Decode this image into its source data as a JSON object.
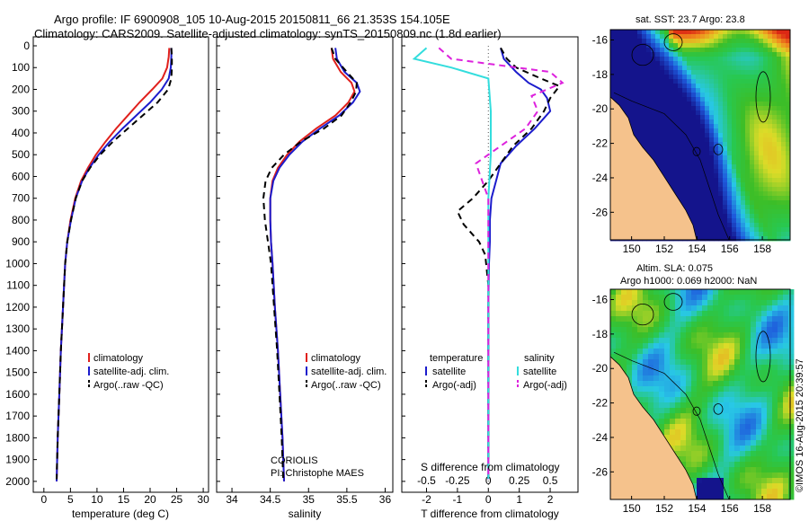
{
  "header": {
    "line1": "Argo profile: IF 6900908_105 10-Aug-2015 20150811_66 21.353S 154.105E",
    "line2": "Climatology: CARS2009. Satellite-adjusted climatology: synTS_20150809.nc (1.8d earlier)"
  },
  "colors": {
    "climatology": "#e0201c",
    "satellite": "#1c1ccc",
    "argo": "#000000",
    "satellite_s": "#33dddd",
    "argo_s": "#dd22dd",
    "land": "#f5c28c"
  },
  "chart_data": [
    {
      "type": "line",
      "panel": "temperature",
      "xlabel": "temperature (deg C)",
      "xlim": [
        -2,
        31
      ],
      "xticks": [
        0,
        5,
        10,
        15,
        20,
        25,
        30
      ],
      "ylim": [
        0,
        2050
      ],
      "yticks": [
        0,
        100,
        200,
        300,
        400,
        500,
        600,
        700,
        800,
        900,
        1000,
        1100,
        1200,
        1300,
        1400,
        1500,
        1600,
        1700,
        1800,
        1900,
        2000
      ],
      "legend": [
        "climatology",
        "satellite-adj. clim.",
        "Argo(..raw -QC)"
      ],
      "series": [
        {
          "name": "climatology",
          "style": "solid",
          "color": "#e0201c",
          "points": [
            [
              23.6,
              10
            ],
            [
              23.5,
              50
            ],
            [
              23.2,
              100
            ],
            [
              22.3,
              150
            ],
            [
              20.4,
              200
            ],
            [
              18.0,
              260
            ],
            [
              15.8,
              320
            ],
            [
              13.6,
              380
            ],
            [
              11.6,
              440
            ],
            [
              9.8,
              500
            ],
            [
              8.3,
              560
            ],
            [
              7.0,
              620
            ],
            [
              5.9,
              700
            ],
            [
              5.0,
              800
            ],
            [
              4.4,
              900
            ],
            [
              4.0,
              1000
            ],
            [
              3.6,
              1200
            ],
            [
              3.2,
              1400
            ],
            [
              2.9,
              1600
            ],
            [
              2.6,
              1800
            ],
            [
              2.4,
              2000
            ]
          ]
        },
        {
          "name": "satellite-adj. clim.",
          "style": "solid",
          "color": "#1c1ccc",
          "points": [
            [
              24.0,
              10
            ],
            [
              24.0,
              50
            ],
            [
              23.9,
              100
            ],
            [
              23.5,
              150
            ],
            [
              22.2,
              200
            ],
            [
              20.0,
              260
            ],
            [
              17.4,
              320
            ],
            [
              14.8,
              380
            ],
            [
              12.4,
              440
            ],
            [
              10.3,
              500
            ],
            [
              8.6,
              560
            ],
            [
              7.2,
              620
            ],
            [
              6.0,
              700
            ],
            [
              5.1,
              800
            ],
            [
              4.4,
              900
            ],
            [
              4.0,
              1000
            ],
            [
              3.6,
              1200
            ],
            [
              3.2,
              1400
            ],
            [
              2.9,
              1600
            ],
            [
              2.6,
              1800
            ],
            [
              2.4,
              2000
            ]
          ]
        },
        {
          "name": "Argo(..raw -QC)",
          "style": "dashed",
          "color": "#000000",
          "points": [
            [
              24.0,
              10
            ],
            [
              24.1,
              50
            ],
            [
              24.1,
              100
            ],
            [
              24.0,
              150
            ],
            [
              23.4,
              200
            ],
            [
              21.4,
              260
            ],
            [
              18.6,
              320
            ],
            [
              15.8,
              380
            ],
            [
              13.0,
              440
            ],
            [
              10.6,
              500
            ],
            [
              8.7,
              560
            ],
            [
              7.2,
              620
            ],
            [
              6.0,
              700
            ],
            [
              5.1,
              800
            ],
            [
              4.4,
              900
            ],
            [
              4.0,
              1000
            ],
            [
              3.6,
              1200
            ],
            [
              3.2,
              1400
            ],
            [
              2.9,
              1600
            ],
            [
              2.6,
              1800
            ],
            [
              2.4,
              1990
            ]
          ]
        }
      ]
    },
    {
      "type": "line",
      "panel": "salinity",
      "xlabel": "salinity",
      "xlim": [
        33.8,
        36.1
      ],
      "xticks": [
        34,
        34.5,
        35,
        35.5,
        36
      ],
      "ylim": [
        0,
        2050
      ],
      "legend": [
        "climatology",
        "satellite-adj. clim.",
        "Argo(..raw -QC)"
      ],
      "annotation": [
        "CORIOLIS",
        "PI: Christophe MAES"
      ],
      "series": [
        {
          "name": "climatology",
          "style": "solid",
          "color": "#e0201c",
          "points": [
            [
              35.3,
              10
            ],
            [
              35.32,
              60
            ],
            [
              35.42,
              120
            ],
            [
              35.56,
              170
            ],
            [
              35.6,
              210
            ],
            [
              35.52,
              260
            ],
            [
              35.35,
              320
            ],
            [
              35.1,
              380
            ],
            [
              34.88,
              440
            ],
            [
              34.72,
              500
            ],
            [
              34.6,
              560
            ],
            [
              34.53,
              620
            ],
            [
              34.5,
              700
            ],
            [
              34.5,
              800
            ],
            [
              34.51,
              900
            ],
            [
              34.53,
              1000
            ],
            [
              34.56,
              1200
            ],
            [
              34.6,
              1400
            ],
            [
              34.63,
              1600
            ],
            [
              34.66,
              1800
            ],
            [
              34.68,
              2000
            ]
          ]
        },
        {
          "name": "satellite-adj. clim.",
          "style": "solid",
          "color": "#1c1ccc",
          "points": [
            [
              35.35,
              10
            ],
            [
              35.37,
              60
            ],
            [
              35.47,
              120
            ],
            [
              35.63,
              170
            ],
            [
              35.67,
              210
            ],
            [
              35.58,
              260
            ],
            [
              35.4,
              320
            ],
            [
              35.15,
              380
            ],
            [
              34.92,
              440
            ],
            [
              34.75,
              500
            ],
            [
              34.62,
              560
            ],
            [
              34.54,
              620
            ],
            [
              34.5,
              700
            ],
            [
              34.5,
              800
            ],
            [
              34.51,
              900
            ],
            [
              34.53,
              1000
            ],
            [
              34.56,
              1200
            ],
            [
              34.6,
              1400
            ],
            [
              34.63,
              1600
            ],
            [
              34.66,
              1800
            ],
            [
              34.68,
              2000
            ]
          ]
        },
        {
          "name": "Argo(..raw -QC)",
          "style": "dashed",
          "color": "#000000",
          "points": [
            [
              35.3,
              10
            ],
            [
              35.35,
              60
            ],
            [
              35.5,
              120
            ],
            [
              35.63,
              170
            ],
            [
              35.62,
              210
            ],
            [
              35.55,
              260
            ],
            [
              35.43,
              320
            ],
            [
              35.2,
              380
            ],
            [
              34.9,
              440
            ],
            [
              34.68,
              500
            ],
            [
              34.52,
              560
            ],
            [
              34.44,
              620
            ],
            [
              34.41,
              700
            ],
            [
              34.43,
              800
            ],
            [
              34.47,
              900
            ],
            [
              34.51,
              1000
            ],
            [
              34.55,
              1200
            ],
            [
              34.59,
              1400
            ],
            [
              34.62,
              1600
            ],
            [
              34.65,
              1800
            ],
            [
              34.67,
              1990
            ]
          ]
        }
      ]
    },
    {
      "type": "line",
      "panel": "differences",
      "xlabel": "T difference from climatology",
      "xlabel_top": "S difference from climatology",
      "xlim": [
        -2.8,
        2.9
      ],
      "xticks_T": [
        -2,
        -1,
        0,
        1,
        2
      ],
      "xticks_S": [
        "-0.5",
        "-0.25",
        "0",
        "0.25",
        "0.5"
      ],
      "ylim": [
        0,
        2050
      ],
      "legend": {
        "temperature": [
          "satellite",
          "Argo(-adj)"
        ],
        "salinity": [
          "satellite",
          "Argo(-adj)"
        ]
      },
      "series": [
        {
          "name": "T satellite",
          "style": "solid",
          "color": "#1c1ccc",
          "points": [
            [
              0.4,
              10
            ],
            [
              0.5,
              60
            ],
            [
              0.9,
              120
            ],
            [
              1.3,
              170
            ],
            [
              1.7,
              200
            ],
            [
              1.9,
              240
            ],
            [
              2.0,
              300
            ],
            [
              1.5,
              380
            ],
            [
              0.9,
              460
            ],
            [
              0.4,
              540
            ],
            [
              0.25,
              620
            ],
            [
              0.1,
              700
            ],
            [
              0.05,
              800
            ],
            [
              0.05,
              900
            ],
            [
              0.02,
              1000
            ],
            [
              0.0,
              1200
            ],
            [
              0.0,
              1400
            ],
            [
              0.0,
              1600
            ],
            [
              0.0,
              1800
            ],
            [
              0.0,
              1990
            ]
          ]
        },
        {
          "name": "T Argo(-adj)",
          "style": "dashed",
          "color": "#000000",
          "points": [
            [
              0.4,
              10
            ],
            [
              0.6,
              60
            ],
            [
              0.9,
              100
            ],
            [
              1.7,
              150
            ],
            [
              2.3,
              185
            ],
            [
              2.0,
              240
            ],
            [
              1.8,
              300
            ],
            [
              1.4,
              380
            ],
            [
              0.8,
              460
            ],
            [
              0.4,
              540
            ],
            [
              0.0,
              620
            ],
            [
              -0.5,
              700
            ],
            [
              -1.0,
              760
            ],
            [
              -0.8,
              820
            ],
            [
              -0.3,
              900
            ],
            [
              -0.1,
              960
            ],
            [
              0.0,
              1100
            ],
            [
              0.0,
              1400
            ],
            [
              0.0,
              1700
            ],
            [
              0.0,
              1990
            ]
          ]
        },
        {
          "name": "S satellite",
          "style": "solid",
          "color": "#33dddd",
          "points": [
            [
              -0.5,
              10
            ],
            [
              -0.6,
              60
            ],
            [
              -0.3,
              100
            ],
            [
              0.0,
              150
            ],
            [
              0.02,
              300
            ],
            [
              0.02,
              500
            ],
            [
              0.0,
              700
            ],
            [
              0.0,
              900
            ],
            [
              0.0,
              1100
            ],
            [
              0.0,
              1400
            ],
            [
              0.0,
              1700
            ],
            [
              0.0,
              1990
            ]
          ]
        },
        {
          "name": "S Argo(-adj)",
          "style": "dashed",
          "color": "#dd22dd",
          "points": [
            [
              -0.4,
              10
            ],
            [
              -0.3,
              60
            ],
            [
              0.5,
              120
            ],
            [
              0.6,
              170
            ],
            [
              0.35,
              230
            ],
            [
              0.4,
              300
            ],
            [
              0.3,
              380
            ],
            [
              0.1,
              460
            ],
            [
              -0.1,
              540
            ],
            [
              -0.05,
              620
            ],
            [
              0.0,
              700
            ],
            [
              0.0,
              800
            ],
            [
              0.0,
              900
            ],
            [
              0.0,
              1100
            ],
            [
              0.0,
              1400
            ],
            [
              0.0,
              1700
            ],
            [
              0.0,
              1990
            ]
          ]
        }
      ]
    }
  ],
  "maps": [
    {
      "title": "sat. SST: 23.7 Argo: 23.8",
      "xticks": [
        150,
        152,
        154,
        156,
        158
      ],
      "yticks": [
        -16,
        -18,
        -20,
        -22,
        -24,
        -26
      ],
      "field": "sst"
    },
    {
      "title1": "Altim. SLA: 0.075",
      "title2": "Argo h1000: 0.069 h2000: NaN",
      "xticks": [
        150,
        152,
        154,
        156,
        158
      ],
      "yticks": [
        -16,
        -18,
        -20,
        -22,
        -24,
        -26
      ],
      "field": "sla"
    }
  ],
  "credit": "©IMOS 16-Aug-2015 20:39:57"
}
